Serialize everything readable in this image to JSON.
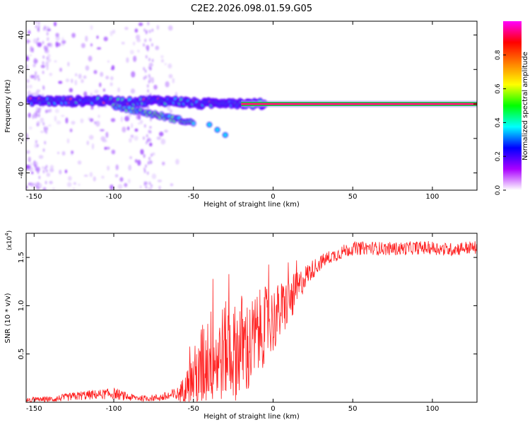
{
  "title": "C2E2.2026.098.01.59.G05",
  "chart_data": [
    {
      "type": "heatmap",
      "xlabel": "Height of straight line (km)",
      "ylabel": "Frequency (Hz)",
      "xlim": [
        -155,
        128
      ],
      "ylim": [
        -50,
        48
      ],
      "xticks": [
        -150,
        -100,
        -50,
        0,
        50,
        100
      ],
      "yticks": [
        -40,
        -20,
        0,
        20,
        40
      ],
      "colorbar": {
        "label": "Normalized spectral amplitude",
        "range": [
          0,
          1
        ],
        "ticks": [
          "0.0",
          "0.2",
          "0.4",
          "0.6",
          "0.8"
        ],
        "tick_values": [
          0,
          0.2,
          0.4,
          0.6,
          0.8
        ],
        "colors": [
          "#ffffff",
          "#aa00ff",
          "#0000ff",
          "#00ffff",
          "#00ff00",
          "#ffff00",
          "#ff8000",
          "#ff0000",
          "#ff00ff"
        ]
      },
      "ridge": {
        "x": [
          -150,
          -130,
          -110,
          -90,
          -75,
          -60,
          -45,
          -30,
          -15,
          0,
          10,
          50,
          100,
          128
        ],
        "y": [
          2,
          1.5,
          2,
          1,
          2,
          1.5,
          0,
          1,
          0,
          0,
          0,
          0,
          0,
          0
        ]
      },
      "secondary_branch": {
        "x": [
          -100,
          -90,
          -80,
          -70,
          -60,
          -50
        ],
        "y": [
          -1,
          -3,
          -5,
          -7,
          -9,
          -11
        ]
      },
      "trail": {
        "x": [
          -40,
          -35,
          -30
        ],
        "y": [
          -12,
          -15,
          -18
        ]
      }
    },
    {
      "type": "line",
      "xlabel": "Height of straight line (km)",
      "ylabel": "SNR (10 * v/v)",
      "y_multiplier": "(x10",
      "y_multiplier_exp": "4",
      "y_multiplier_close": ")",
      "xlim": [
        -155,
        128
      ],
      "ylim": [
        0,
        1.75
      ],
      "xticks": [
        -150,
        -100,
        -50,
        0,
        50,
        100
      ],
      "yticks": [
        0.5,
        1.0,
        1.5
      ],
      "ytick_labels": [
        "0.5",
        "1.0",
        "1.5"
      ],
      "series": [
        {
          "color": "#ff2020",
          "x": [
            -155,
            -140,
            -130,
            -120,
            -110,
            -100,
            -90,
            -80,
            -70,
            -60,
            -55,
            -50,
            -45,
            -40,
            -35,
            -30,
            -25,
            -20,
            -15,
            -10,
            -5,
            0,
            5,
            10,
            15,
            20,
            25,
            30,
            35,
            40,
            45,
            50,
            60,
            70,
            80,
            90,
            100,
            110,
            120,
            128
          ],
          "y": [
            0.02,
            0.03,
            0.05,
            0.07,
            0.08,
            0.09,
            0.05,
            0.04,
            0.05,
            0.08,
            0.15,
            0.25,
            0.35,
            0.5,
            0.45,
            0.55,
            0.5,
            0.6,
            0.55,
            0.7,
            0.8,
            0.85,
            0.95,
            1.05,
            1.15,
            1.3,
            1.38,
            1.45,
            1.5,
            1.53,
            1.57,
            1.59,
            1.6,
            1.59,
            1.59,
            1.6,
            1.6,
            1.58,
            1.6,
            1.6
          ],
          "noise_amp": [
            0.03,
            0.03,
            0.04,
            0.05,
            0.05,
            0.06,
            0.04,
            0.03,
            0.04,
            0.08,
            0.15,
            0.3,
            0.45,
            0.5,
            0.5,
            0.5,
            0.5,
            0.55,
            0.5,
            0.45,
            0.4,
            0.35,
            0.3,
            0.25,
            0.2,
            0.12,
            0.1,
            0.08,
            0.07,
            0.07,
            0.07,
            0.07,
            0.07,
            0.07,
            0.07,
            0.07,
            0.07,
            0.07,
            0.07,
            0.07
          ]
        }
      ]
    }
  ]
}
